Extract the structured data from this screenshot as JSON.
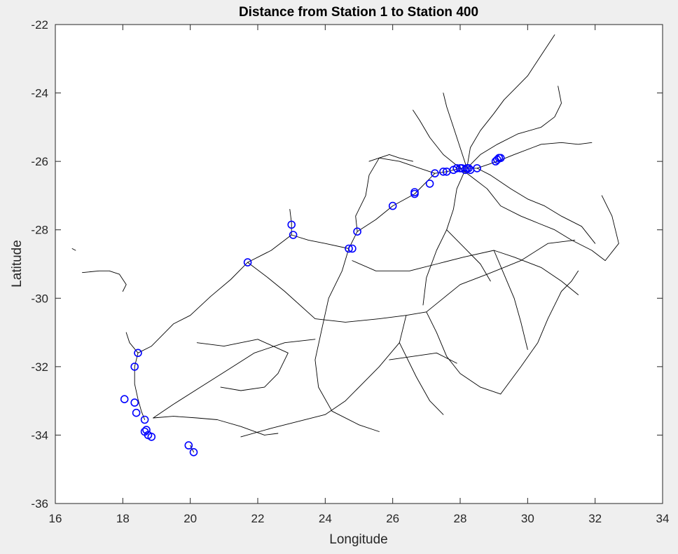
{
  "chart_data": {
    "type": "scatter",
    "title": "Distance from Station 1 to Station 400",
    "xlabel": "Longitude",
    "ylabel": "Latitude",
    "xlim": [
      16,
      34
    ],
    "ylim": [
      -36,
      -22
    ],
    "xticks": [
      16,
      18,
      20,
      22,
      24,
      26,
      28,
      30,
      32,
      34
    ],
    "yticks": [
      -36,
      -34,
      -32,
      -30,
      -28,
      -26,
      -24,
      -22
    ],
    "grid": false,
    "marker_color": "#0000ff",
    "network_color": "#000000",
    "series": [
      {
        "marker": "circle",
        "x": [
          18.45,
          18.35,
          18.05,
          18.35,
          18.4,
          18.65,
          18.65,
          18.7,
          18.75,
          18.85,
          19.95,
          20.1,
          21.7,
          23.0,
          23.05,
          24.7,
          24.8,
          24.95,
          26.0,
          26.65,
          26.65,
          27.1,
          27.25,
          27.5,
          27.6,
          27.8,
          27.9,
          28.0,
          28.05,
          28.15,
          28.2,
          28.25,
          28.3,
          28.5,
          29.05,
          29.1,
          29.15,
          29.2
        ],
        "y": [
          -31.6,
          -32.0,
          -32.95,
          -33.05,
          -33.35,
          -33.55,
          -33.9,
          -33.85,
          -34.0,
          -34.05,
          -34.3,
          -34.5,
          -28.95,
          -27.85,
          -28.15,
          -28.55,
          -28.55,
          -28.05,
          -27.3,
          -26.9,
          -26.95,
          -26.65,
          -26.35,
          -26.3,
          -26.3,
          -26.25,
          -26.2,
          -26.2,
          -26.2,
          -26.25,
          -26.2,
          -26.2,
          -26.25,
          -26.2,
          -26.0,
          -25.95,
          -25.9,
          -25.9
        ]
      }
    ],
    "network": [
      [
        [
          16.8,
          -29.25
        ],
        [
          17.3,
          -29.2
        ],
        [
          17.6,
          -29.2
        ],
        [
          17.9,
          -29.3
        ],
        [
          18.1,
          -29.6
        ],
        [
          18.0,
          -29.8
        ]
      ],
      [
        [
          16.5,
          -28.55
        ],
        [
          16.6,
          -28.6
        ]
      ],
      [
        [
          18.9,
          -33.5
        ],
        [
          19.5,
          -33.45
        ],
        [
          20.2,
          -33.5
        ],
        [
          20.8,
          -33.55
        ],
        [
          21.5,
          -33.75
        ],
        [
          22.2,
          -34.0
        ],
        [
          22.6,
          -33.95
        ]
      ],
      [
        [
          18.65,
          -33.55
        ],
        [
          18.55,
          -33.3
        ],
        [
          18.45,
          -32.95
        ],
        [
          18.35,
          -32.5
        ],
        [
          18.35,
          -32.0
        ],
        [
          18.45,
          -31.6
        ],
        [
          18.85,
          -31.4
        ],
        [
          19.5,
          -30.75
        ],
        [
          20.0,
          -30.5
        ],
        [
          20.6,
          -29.95
        ],
        [
          21.2,
          -29.45
        ],
        [
          21.7,
          -28.95
        ],
        [
          22.4,
          -28.6
        ],
        [
          23.0,
          -28.15
        ],
        [
          23.5,
          -28.3
        ],
        [
          24.0,
          -28.4
        ],
        [
          24.7,
          -28.55
        ],
        [
          24.95,
          -28.05
        ],
        [
          25.5,
          -27.7
        ],
        [
          26.0,
          -27.3
        ],
        [
          26.65,
          -26.95
        ],
        [
          27.25,
          -26.35
        ],
        [
          27.6,
          -26.3
        ],
        [
          28.0,
          -26.2
        ],
        [
          28.5,
          -26.2
        ],
        [
          29.1,
          -26.0
        ],
        [
          29.6,
          -25.8
        ],
        [
          30.4,
          -25.5
        ],
        [
          31.0,
          -25.45
        ],
        [
          31.5,
          -25.5
        ],
        [
          31.9,
          -25.45
        ]
      ],
      [
        [
          21.7,
          -28.95
        ],
        [
          22.3,
          -29.4
        ],
        [
          22.8,
          -29.8
        ],
        [
          23.7,
          -30.6
        ],
        [
          24.6,
          -30.7
        ],
        [
          25.6,
          -30.6
        ],
        [
          26.4,
          -30.5
        ],
        [
          27.0,
          -30.4
        ],
        [
          27.5,
          -30.0
        ],
        [
          28.0,
          -29.6
        ],
        [
          28.8,
          -29.3
        ],
        [
          29.8,
          -28.9
        ],
        [
          30.6,
          -28.4
        ],
        [
          31.4,
          -28.3
        ]
      ],
      [
        [
          24.7,
          -28.55
        ],
        [
          24.5,
          -29.2
        ],
        [
          24.1,
          -30.0
        ],
        [
          23.9,
          -30.9
        ],
        [
          23.7,
          -31.8
        ],
        [
          23.8,
          -32.6
        ],
        [
          24.2,
          -33.3
        ],
        [
          25.0,
          -33.7
        ],
        [
          25.6,
          -33.9
        ]
      ],
      [
        [
          24.8,
          -28.9
        ],
        [
          25.5,
          -29.2
        ],
        [
          26.5,
          -29.2
        ],
        [
          27.3,
          -29.0
        ],
        [
          28.1,
          -28.8
        ],
        [
          29.0,
          -28.6
        ],
        [
          29.6,
          -28.8
        ],
        [
          30.4,
          -29.1
        ],
        [
          31.0,
          -29.5
        ],
        [
          31.5,
          -29.9
        ]
      ],
      [
        [
          26.4,
          -30.5
        ],
        [
          26.2,
          -31.3
        ],
        [
          25.6,
          -32.0
        ],
        [
          25.1,
          -32.5
        ],
        [
          24.6,
          -33.0
        ],
        [
          24.0,
          -33.4
        ],
        [
          23.2,
          -33.6
        ],
        [
          22.4,
          -33.8
        ],
        [
          21.5,
          -34.05
        ]
      ],
      [
        [
          27.0,
          -30.4
        ],
        [
          27.3,
          -31.0
        ],
        [
          27.6,
          -31.7
        ],
        [
          28.0,
          -32.2
        ],
        [
          28.6,
          -32.6
        ],
        [
          29.2,
          -32.8
        ]
      ],
      [
        [
          18.9,
          -33.5
        ],
        [
          19.5,
          -33.1
        ],
        [
          20.3,
          -32.6
        ],
        [
          21.1,
          -32.1
        ],
        [
          21.9,
          -31.6
        ],
        [
          22.8,
          -31.3
        ],
        [
          23.7,
          -31.2
        ]
      ],
      [
        [
          20.2,
          -31.3
        ],
        [
          21.0,
          -31.4
        ],
        [
          22.0,
          -31.2
        ],
        [
          22.9,
          -31.6
        ],
        [
          22.6,
          -32.2
        ],
        [
          22.2,
          -32.6
        ],
        [
          21.5,
          -32.7
        ],
        [
          20.9,
          -32.6
        ]
      ],
      [
        [
          27.25,
          -26.35
        ],
        [
          26.8,
          -26.2
        ],
        [
          26.2,
          -26.0
        ],
        [
          25.6,
          -25.9
        ],
        [
          25.3,
          -26.4
        ],
        [
          25.2,
          -27.0
        ],
        [
          24.9,
          -27.6
        ],
        [
          24.95,
          -28.05
        ]
      ],
      [
        [
          26.6,
          -26.0
        ],
        [
          26.2,
          -25.9
        ],
        [
          25.9,
          -25.8
        ],
        [
          25.3,
          -26.0
        ]
      ],
      [
        [
          28.0,
          -26.2
        ],
        [
          28.4,
          -26.5
        ],
        [
          28.8,
          -26.8
        ],
        [
          29.2,
          -27.3
        ],
        [
          29.8,
          -27.6
        ],
        [
          30.3,
          -27.8
        ],
        [
          30.8,
          -28.0
        ],
        [
          31.3,
          -28.3
        ],
        [
          31.9,
          -28.6
        ],
        [
          32.3,
          -28.9
        ],
        [
          32.7,
          -28.4
        ],
        [
          32.5,
          -27.6
        ],
        [
          32.2,
          -27.0
        ]
      ],
      [
        [
          28.2,
          -26.2
        ],
        [
          28.3,
          -25.6
        ],
        [
          28.6,
          -25.1
        ],
        [
          29.0,
          -24.6
        ],
        [
          29.3,
          -24.2
        ],
        [
          29.6,
          -23.9
        ],
        [
          30.0,
          -23.5
        ],
        [
          30.4,
          -22.9
        ],
        [
          30.8,
          -22.3
        ]
      ],
      [
        [
          28.2,
          -26.2
        ],
        [
          28.6,
          -25.8
        ],
        [
          29.1,
          -25.5
        ],
        [
          29.7,
          -25.2
        ],
        [
          30.4,
          -25.0
        ],
        [
          30.8,
          -24.7
        ],
        [
          31.0,
          -24.3
        ],
        [
          30.9,
          -23.8
        ]
      ],
      [
        [
          28.15,
          -26.25
        ],
        [
          27.9,
          -26.8
        ],
        [
          27.8,
          -27.4
        ],
        [
          27.6,
          -28.0
        ],
        [
          27.3,
          -28.6
        ],
        [
          27.0,
          -29.4
        ],
        [
          26.9,
          -30.2
        ]
      ],
      [
        [
          28.5,
          -26.2
        ],
        [
          28.9,
          -26.4
        ],
        [
          29.5,
          -26.8
        ],
        [
          30.0,
          -27.1
        ],
        [
          30.5,
          -27.3
        ],
        [
          31.0,
          -27.6
        ],
        [
          31.6,
          -27.9
        ],
        [
          32.0,
          -28.4
        ]
      ],
      [
        [
          28.0,
          -26.2
        ],
        [
          27.5,
          -25.8
        ],
        [
          27.1,
          -25.3
        ],
        [
          26.8,
          -24.8
        ],
        [
          26.6,
          -24.5
        ]
      ],
      [
        [
          28.2,
          -26.2
        ],
        [
          28.0,
          -25.6
        ],
        [
          27.8,
          -25.0
        ],
        [
          27.6,
          -24.4
        ],
        [
          27.5,
          -24.0
        ]
      ],
      [
        [
          29.2,
          -32.8
        ],
        [
          29.8,
          -32.0
        ],
        [
          30.3,
          -31.3
        ],
        [
          30.6,
          -30.6
        ],
        [
          30.9,
          -30.0
        ],
        [
          31.0,
          -29.8
        ],
        [
          31.3,
          -29.5
        ],
        [
          31.5,
          -29.2
        ]
      ],
      [
        [
          29.0,
          -28.6
        ],
        [
          29.3,
          -29.3
        ],
        [
          29.6,
          -30.0
        ],
        [
          29.8,
          -30.7
        ],
        [
          30.0,
          -31.5
        ]
      ],
      [
        [
          18.45,
          -31.6
        ],
        [
          18.2,
          -31.3
        ],
        [
          18.1,
          -31.0
        ]
      ],
      [
        [
          20.0,
          -34.3
        ],
        [
          20.1,
          -34.5
        ]
      ],
      [
        [
          23.0,
          -28.15
        ],
        [
          23.0,
          -27.8
        ],
        [
          22.95,
          -27.4
        ]
      ],
      [
        [
          27.6,
          -28.0
        ],
        [
          28.1,
          -28.5
        ],
        [
          28.6,
          -29.0
        ],
        [
          28.9,
          -29.5
        ]
      ],
      [
        [
          25.9,
          -31.8
        ],
        [
          26.6,
          -31.7
        ],
        [
          27.3,
          -31.6
        ],
        [
          27.9,
          -31.9
        ]
      ],
      [
        [
          26.2,
          -31.3
        ],
        [
          26.7,
          -32.3
        ],
        [
          27.1,
          -33.0
        ],
        [
          27.5,
          -33.4
        ]
      ]
    ]
  }
}
